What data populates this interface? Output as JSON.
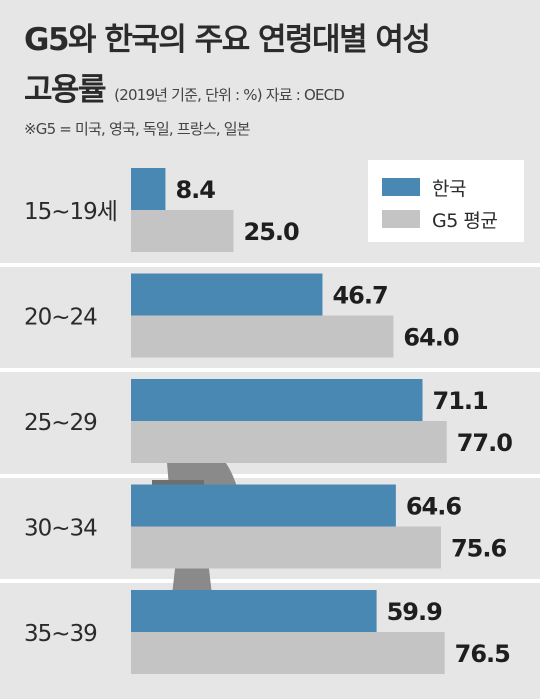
{
  "header": {
    "title_line1": "G5와 한국의 주요 연령대별 여성",
    "title_line2": "고용률",
    "subtitle": "(2019년 기준, 단위 : %)  자료 : OECD",
    "note": "※G5 = 미국, 영국, 독일, 프랑스, 일본"
  },
  "colors": {
    "korea": "#4a88b4",
    "g5": "#c4c4c4",
    "background": "#e6e6e6",
    "figure": "#8a8a8a"
  },
  "icons": [
    "woman-figure-icon"
  ],
  "chart_data": {
    "type": "bar",
    "orientation": "horizontal",
    "categories": [
      "15~19세",
      "20~24",
      "25~29",
      "30~34",
      "35~39"
    ],
    "series": [
      {
        "name": "한국",
        "values": [
          8.4,
          46.7,
          71.1,
          64.6,
          59.9
        ]
      },
      {
        "name": "G5 평균",
        "values": [
          25.0,
          64.0,
          77.0,
          75.6,
          76.5
        ]
      }
    ],
    "value_labels": [
      [
        "8.4",
        "46.7",
        "71.1",
        "64.6",
        "59.9"
      ],
      [
        "25.0",
        "64.0",
        "77.0",
        "75.6",
        "76.5"
      ]
    ],
    "xlim": [
      0,
      100
    ],
    "legend_position": "top-right",
    "grid": false
  }
}
